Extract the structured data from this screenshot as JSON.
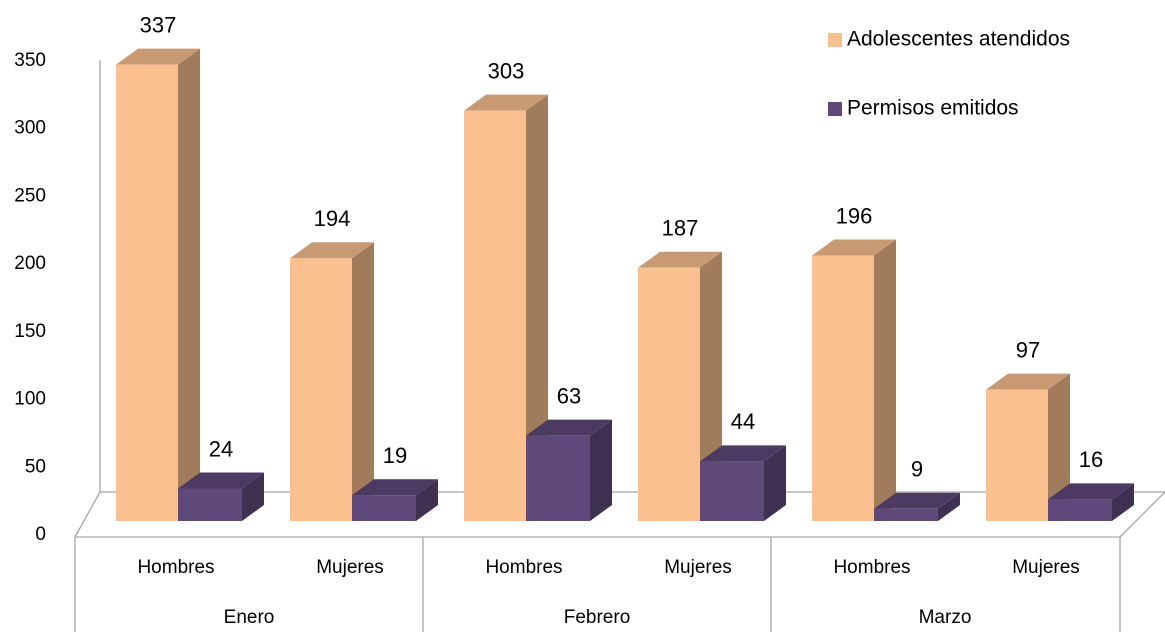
{
  "chart_data": {
    "type": "bar3d",
    "categories": [
      "Hombres",
      "Mujeres",
      "Hombres",
      "Mujeres",
      "Hombres",
      "Mujeres"
    ],
    "groups": [
      "Enero",
      "Febrero",
      "Marzo"
    ],
    "series": [
      {
        "name": "Adolescentes atendidos",
        "color": "#FAC090",
        "values": [
          337,
          194,
          303,
          187,
          196,
          97
        ]
      },
      {
        "name": "Permisos emitidos",
        "color": "#5F497A",
        "values": [
          24,
          19,
          63,
          44,
          9,
          16
        ]
      }
    ],
    "ylim": [
      0,
      350
    ],
    "yticks": [
      0,
      50,
      100,
      150,
      200,
      250,
      300,
      350
    ],
    "legend": "top-right",
    "grid": false
  }
}
